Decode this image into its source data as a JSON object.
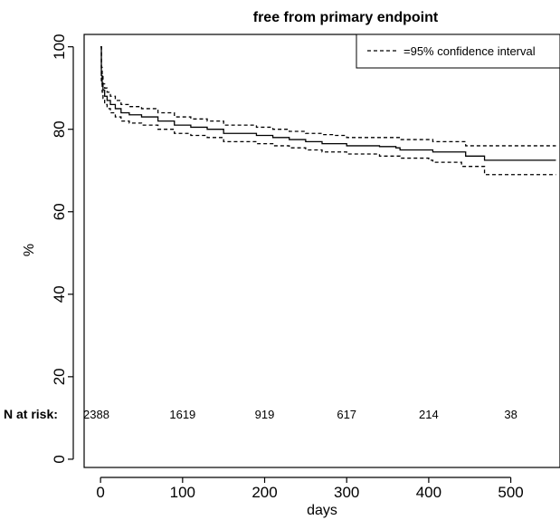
{
  "chart_data": {
    "type": "line",
    "title": "free from primary endpoint",
    "xlabel": "days",
    "ylabel": "%",
    "xlim": [
      -20,
      560
    ],
    "ylim": [
      -2,
      103
    ],
    "xticks": [
      0,
      100,
      200,
      300,
      400,
      500
    ],
    "yticks": [
      0,
      20,
      40,
      60,
      80,
      100
    ],
    "grid": false,
    "legend_position": "top-right",
    "legend_label": "=95% confidence interval",
    "series": [
      {
        "style": "solid",
        "x": [
          0,
          1,
          2,
          3,
          5,
          8,
          12,
          18,
          25,
          35,
          50,
          70,
          90,
          110,
          130,
          150,
          170,
          190,
          210,
          230,
          250,
          270,
          285,
          300,
          320,
          340,
          360,
          365,
          380,
          400,
          405,
          420,
          440,
          445,
          460,
          468,
          480,
          500,
          520,
          555
        ],
        "y": [
          100,
          93,
          91,
          89.5,
          88,
          87,
          86,
          85,
          84,
          83.5,
          83,
          82,
          81,
          80.5,
          80,
          79,
          79,
          78.5,
          78,
          77.5,
          77,
          76.5,
          76.5,
          76,
          76,
          75.8,
          75.5,
          75,
          75,
          75,
          74.5,
          74.5,
          74.5,
          73.5,
          73.5,
          72.5,
          72.5,
          72.5,
          72.5,
          72.5
        ]
      },
      {
        "name": "=95% confidence interval",
        "style": "dashed",
        "x": [
          0,
          1,
          2,
          3,
          5,
          8,
          12,
          18,
          25,
          35,
          50,
          70,
          90,
          110,
          130,
          150,
          170,
          190,
          210,
          230,
          250,
          270,
          285,
          300,
          320,
          340,
          360,
          365,
          380,
          400,
          405,
          420,
          440,
          445,
          460,
          468,
          480,
          500,
          520,
          555
        ],
        "y": [
          100,
          95,
          93,
          91,
          90,
          89,
          88,
          87,
          86,
          85.5,
          85,
          84,
          83,
          82.5,
          82,
          81,
          81,
          80.5,
          80,
          79.5,
          79,
          78.7,
          78.5,
          78,
          78,
          78,
          78,
          77.5,
          77.5,
          77.5,
          77,
          77,
          77,
          76,
          76,
          76,
          76,
          76,
          76,
          76
        ]
      },
      {
        "name": "=95% confidence interval",
        "style": "dashed",
        "x": [
          0,
          1,
          2,
          3,
          5,
          8,
          12,
          18,
          25,
          35,
          50,
          70,
          90,
          110,
          130,
          150,
          170,
          190,
          210,
          230,
          250,
          270,
          285,
          300,
          320,
          340,
          360,
          365,
          380,
          400,
          405,
          420,
          440,
          445,
          460,
          468,
          480,
          500,
          520,
          555
        ],
        "y": [
          100,
          91,
          89,
          87.5,
          86,
          85,
          84,
          83,
          82,
          81.5,
          81,
          80,
          79,
          78.5,
          78,
          77,
          77,
          76.5,
          76,
          75.5,
          75,
          74.5,
          74.5,
          74,
          74,
          73.5,
          73.5,
          73,
          73,
          72.5,
          72,
          72,
          71,
          71,
          71,
          69,
          69,
          69,
          69,
          69
        ]
      }
    ],
    "risk_table": {
      "label": "N at risk:",
      "y": 9.5,
      "x": [
        0,
        100,
        200,
        300,
        400,
        500
      ],
      "values": [
        "2388",
        "1619",
        "919",
        "617",
        "214",
        "38"
      ]
    }
  }
}
